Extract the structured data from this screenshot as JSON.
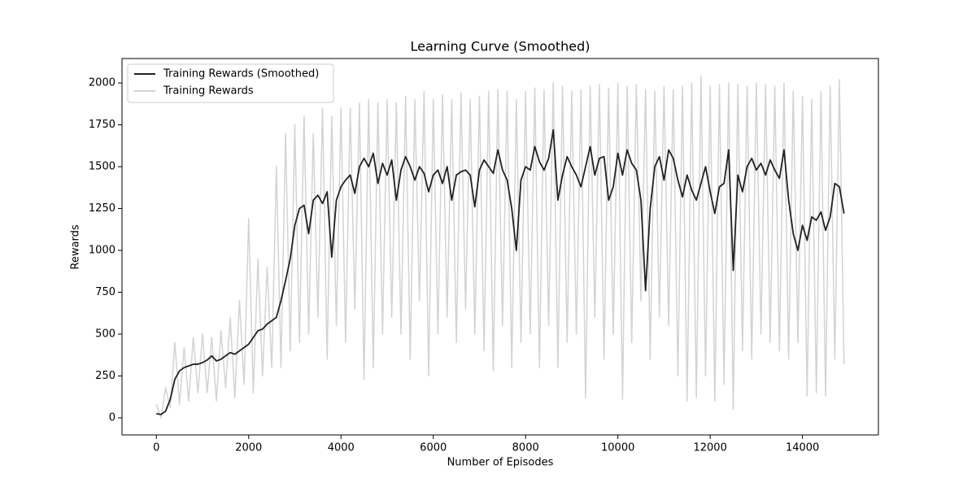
{
  "chart_data": {
    "type": "line",
    "title": "Learning Curve (Smoothed)",
    "xlabel": "Number of Episodes",
    "ylabel": "Rewards",
    "x": [
      0,
      100,
      200,
      300,
      400,
      500,
      600,
      700,
      800,
      900,
      1000,
      1100,
      1200,
      1300,
      1400,
      1500,
      1600,
      1700,
      1800,
      1900,
      2000,
      2100,
      2200,
      2300,
      2400,
      2500,
      2600,
      2700,
      2800,
      2900,
      3000,
      3100,
      3200,
      3300,
      3400,
      3500,
      3600,
      3700,
      3800,
      3900,
      4000,
      4100,
      4200,
      4300,
      4400,
      4500,
      4600,
      4700,
      4800,
      4900,
      5000,
      5100,
      5200,
      5300,
      5400,
      5500,
      5600,
      5700,
      5800,
      5900,
      6000,
      6100,
      6200,
      6300,
      6400,
      6500,
      6600,
      6700,
      6800,
      6900,
      7000,
      7100,
      7200,
      7300,
      7400,
      7500,
      7600,
      7700,
      7800,
      7900,
      8000,
      8100,
      8200,
      8300,
      8400,
      8500,
      8600,
      8700,
      8800,
      8900,
      9000,
      9100,
      9200,
      9300,
      9400,
      9500,
      9600,
      9700,
      9800,
      9900,
      10000,
      10100,
      10200,
      10300,
      10400,
      10500,
      10600,
      10700,
      10800,
      10900,
      11000,
      11100,
      11200,
      11300,
      11400,
      11500,
      11600,
      11700,
      11800,
      11900,
      12000,
      12100,
      12200,
      12300,
      12400,
      12500,
      12600,
      12700,
      12800,
      12900,
      13000,
      13100,
      13200,
      13300,
      13400,
      13500,
      13600,
      13700,
      13800,
      13900,
      14000,
      14100,
      14200,
      14300,
      14400,
      14500,
      14600,
      14700,
      14800,
      14900
    ],
    "series": [
      {
        "name": "Training Rewards (Smoothed)",
        "color": "#222222",
        "values": [
          25,
          20,
          40,
          110,
          230,
          280,
          300,
          310,
          320,
          320,
          330,
          345,
          370,
          340,
          350,
          370,
          390,
          380,
          400,
          420,
          440,
          480,
          520,
          530,
          560,
          580,
          600,
          700,
          820,
          950,
          1150,
          1250,
          1270,
          1100,
          1300,
          1330,
          1280,
          1350,
          960,
          1300,
          1380,
          1420,
          1450,
          1340,
          1500,
          1550,
          1500,
          1580,
          1400,
          1520,
          1450,
          1540,
          1300,
          1480,
          1560,
          1500,
          1420,
          1500,
          1460,
          1350,
          1450,
          1480,
          1400,
          1500,
          1300,
          1450,
          1470,
          1480,
          1450,
          1260,
          1480,
          1540,
          1500,
          1460,
          1600,
          1480,
          1420,
          1250,
          1000,
          1420,
          1500,
          1480,
          1620,
          1530,
          1480,
          1550,
          1720,
          1300,
          1450,
          1560,
          1500,
          1450,
          1380,
          1500,
          1620,
          1450,
          1550,
          1560,
          1300,
          1380,
          1580,
          1450,
          1600,
          1520,
          1480,
          1300,
          760,
          1250,
          1500,
          1560,
          1420,
          1600,
          1550,
          1420,
          1320,
          1450,
          1360,
          1300,
          1400,
          1500,
          1350,
          1220,
          1380,
          1400,
          1600,
          880,
          1450,
          1350,
          1500,
          1550,
          1480,
          1520,
          1450,
          1540,
          1480,
          1430,
          1600,
          1300,
          1100,
          1000,
          1150,
          1060,
          1200,
          1180,
          1230,
          1120,
          1200,
          1400,
          1380,
          1220
        ]
      },
      {
        "name": "Training Rewards",
        "color": "#d3d3d3",
        "values": [
          80,
          0,
          180,
          60,
          450,
          80,
          420,
          100,
          480,
          150,
          500,
          150,
          480,
          100,
          520,
          180,
          600,
          120,
          700,
          200,
          1190,
          150,
          950,
          250,
          900,
          300,
          1500,
          300,
          1700,
          400,
          1750,
          450,
          1800,
          500,
          1700,
          600,
          1850,
          350,
          1800,
          550,
          1850,
          450,
          1850,
          650,
          1880,
          230,
          1900,
          300,
          1880,
          500,
          1900,
          600,
          1880,
          500,
          1920,
          350,
          1900,
          700,
          1950,
          250,
          1900,
          500,
          1930,
          600,
          1900,
          450,
          1940,
          650,
          1900,
          500,
          1920,
          400,
          1950,
          280,
          1960,
          550,
          1950,
          300,
          1900,
          450,
          1950,
          500,
          1970,
          300,
          1960,
          550,
          2000,
          300,
          1980,
          450,
          1950,
          500,
          1960,
          120,
          1980,
          600,
          1990,
          350,
          1970,
          500,
          2000,
          110,
          1980,
          450,
          1990,
          700,
          1960,
          350,
          1950,
          600,
          1980,
          550,
          1960,
          250,
          1980,
          100,
          2000,
          120,
          2040,
          250,
          1980,
          100,
          1990,
          200,
          2000,
          50,
          1990,
          400,
          1980,
          350,
          2000,
          500,
          1990,
          450,
          1980,
          400,
          2000,
          350,
          1950,
          450,
          1920,
          130,
          1900,
          150,
          1950,
          130,
          1980,
          350,
          2020,
          320
        ]
      }
    ],
    "xlim": [
      -745,
      15645
    ],
    "ylim": [
      -102,
      2146
    ],
    "xticks": [
      0,
      2000,
      4000,
      6000,
      8000,
      10000,
      12000,
      14000
    ],
    "yticks": [
      0,
      250,
      500,
      750,
      1000,
      1250,
      1500,
      1750,
      2000
    ],
    "legend": "upper left"
  }
}
